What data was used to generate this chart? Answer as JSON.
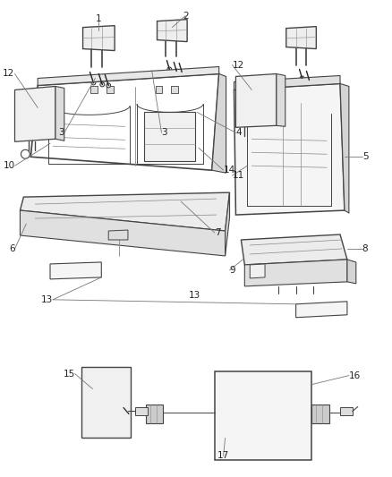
{
  "bg_color": "#ffffff",
  "lc": "#444444",
  "lc_light": "#888888",
  "lc_dark": "#222222",
  "label_fs": 7.5,
  "leader_color": "#777777",
  "fig_w": 4.38,
  "fig_h": 5.33
}
